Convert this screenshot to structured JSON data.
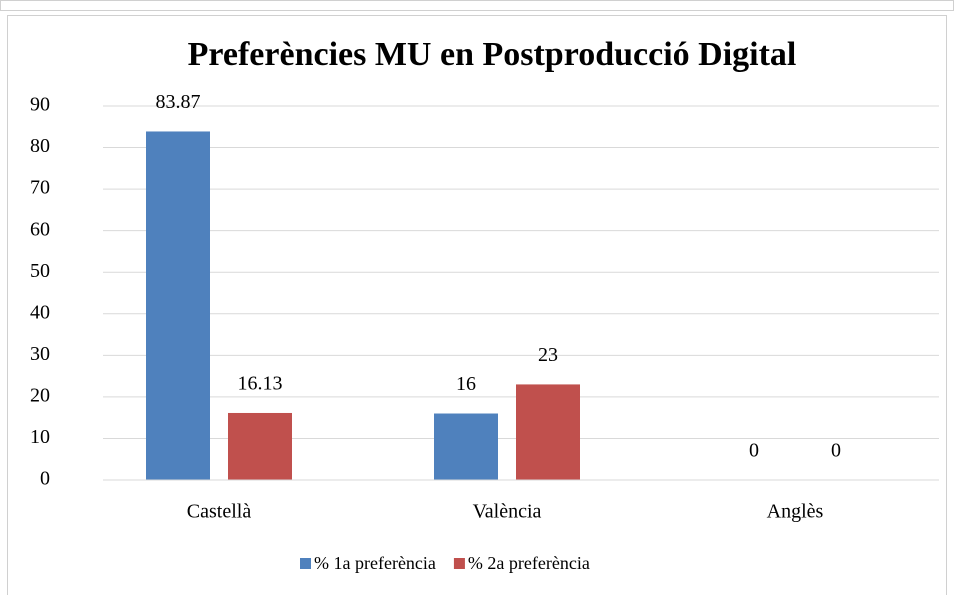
{
  "chart_data": {
    "type": "bar",
    "title": "Preferències MU en Postproducció Digital",
    "categories": [
      "Castellà",
      "València",
      "Anglès"
    ],
    "series": [
      {
        "name": "% 1a preferència",
        "color": "#4f81bd",
        "values": [
          83.87,
          16,
          0
        ]
      },
      {
        "name": "% 2a preferència",
        "color": "#c0504d",
        "values": [
          16.13,
          23,
          0
        ]
      }
    ],
    "ylim": [
      0,
      90
    ],
    "yticks": [
      0,
      10,
      20,
      30,
      40,
      50,
      60,
      70,
      80,
      90
    ],
    "grid": true,
    "legend": "bottom"
  }
}
